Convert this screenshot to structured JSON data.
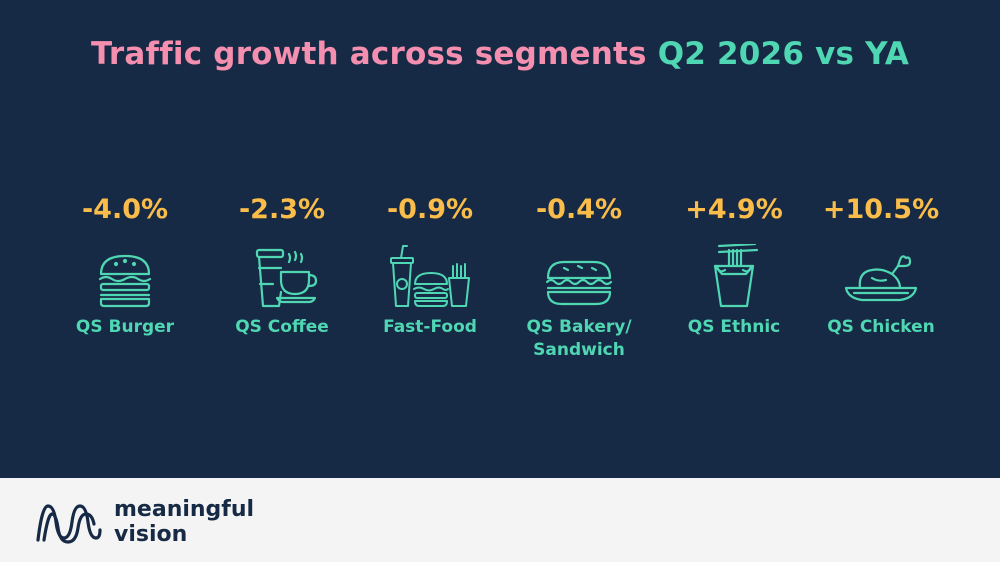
{
  "title": {
    "part1": "Traffic growth across segments ",
    "part2": "Q2 2026 vs YA",
    "colors": {
      "part1": "#f58fb0",
      "part2": "#4fd6b2"
    }
  },
  "segments": [
    {
      "value": "-4.0%",
      "label": "QS Burger",
      "icon": "burger-icon"
    },
    {
      "value": "-2.3%",
      "label": "QS Coffee",
      "icon": "coffee-icon"
    },
    {
      "value": "-0.9%",
      "label": "Fast-Food",
      "icon": "fast-food-icon"
    },
    {
      "value": "-0.4%",
      "label_line1": "QS Bakery/",
      "label_line2": "Sandwich",
      "icon": "sandwich-icon"
    },
    {
      "value": "+4.9%",
      "label": "QS Ethnic",
      "icon": "noodle-box-icon"
    },
    {
      "value": "+10.5%",
      "label": "QS Chicken",
      "icon": "roast-chicken-icon"
    }
  ],
  "colors": {
    "background": "#172a45",
    "value": "#fbbd4a",
    "label": "#4fd6b2",
    "footer": "#f4f4f4"
  },
  "brand": {
    "line1": "meaningful",
    "line2": "vision"
  }
}
